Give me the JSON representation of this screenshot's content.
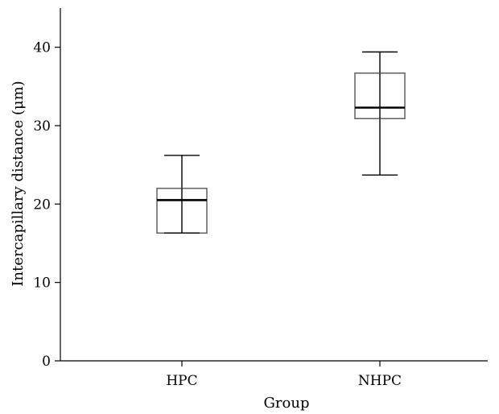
{
  "chart_data": {
    "type": "box",
    "xlabel": "Group",
    "ylabel": "Intercapillary distance (μm)",
    "ylim": [
      0,
      45
    ],
    "yticks": [
      0,
      10,
      20,
      30,
      40
    ],
    "categories": [
      "HPC",
      "NHPC"
    ],
    "boxes": [
      {
        "category": "HPC",
        "min": 16.3,
        "q1": 16.3,
        "median": 20.5,
        "q3": 22.0,
        "max": 26.2
      },
      {
        "category": "NHPC",
        "min": 23.7,
        "q1": 30.9,
        "median": 32.3,
        "q3": 36.7,
        "max": 39.4
      }
    ],
    "grid": false,
    "legend": "none"
  }
}
